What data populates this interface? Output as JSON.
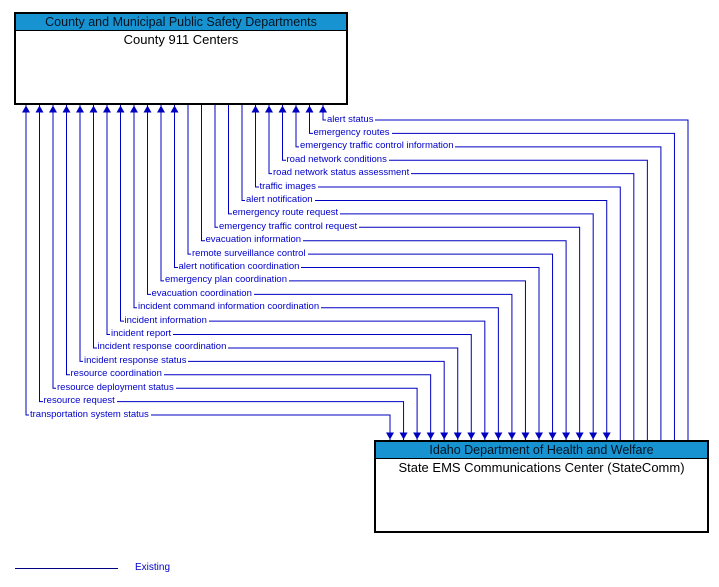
{
  "diagram": {
    "type": "its-interconnect-diagram",
    "entities": [
      {
        "id": "county-911",
        "header": "County and Municipal Public Safety Departments",
        "name": "County 911 Centers"
      },
      {
        "id": "statecomm",
        "header": "Idaho Department of Health and Welfare",
        "name": "State EMS Communications Center (StateComm)"
      }
    ],
    "flows": [
      {
        "label": "alert status",
        "direction": "to-county-911"
      },
      {
        "label": "emergency routes",
        "direction": "to-county-911"
      },
      {
        "label": "emergency traffic control information",
        "direction": "to-county-911"
      },
      {
        "label": "road network conditions",
        "direction": "to-county-911"
      },
      {
        "label": "road network status assessment",
        "direction": "to-county-911"
      },
      {
        "label": "traffic images",
        "direction": "to-county-911"
      },
      {
        "label": "alert notification",
        "direction": "to-statecomm"
      },
      {
        "label": "emergency route request",
        "direction": "to-statecomm"
      },
      {
        "label": "emergency traffic control request",
        "direction": "to-statecomm"
      },
      {
        "label": "evacuation information",
        "direction": "to-statecomm"
      },
      {
        "label": "remote surveillance control",
        "direction": "to-statecomm"
      },
      {
        "label": "alert notification coordination",
        "direction": "bidirectional"
      },
      {
        "label": "emergency plan coordination",
        "direction": "bidirectional"
      },
      {
        "label": "evacuation coordination",
        "direction": "bidirectional"
      },
      {
        "label": "incident command information coordination",
        "direction": "bidirectional"
      },
      {
        "label": "incident information",
        "direction": "bidirectional"
      },
      {
        "label": "incident report",
        "direction": "bidirectional"
      },
      {
        "label": "incident response coordination",
        "direction": "bidirectional"
      },
      {
        "label": "incident response status",
        "direction": "bidirectional"
      },
      {
        "label": "resource coordination",
        "direction": "bidirectional"
      },
      {
        "label": "resource deployment status",
        "direction": "bidirectional"
      },
      {
        "label": "resource request",
        "direction": "bidirectional"
      },
      {
        "label": "transportation system status",
        "direction": "bidirectional"
      }
    ],
    "legend": {
      "label": "Existing"
    },
    "colors": {
      "flow_line": "#0000C0",
      "flow_label_text": "#0000CC",
      "header_bg": "#1793D1",
      "header_text": "#04121F",
      "box_border": "#000000",
      "legend_line": "#000080",
      "legend_text": "#0000CC"
    }
  }
}
